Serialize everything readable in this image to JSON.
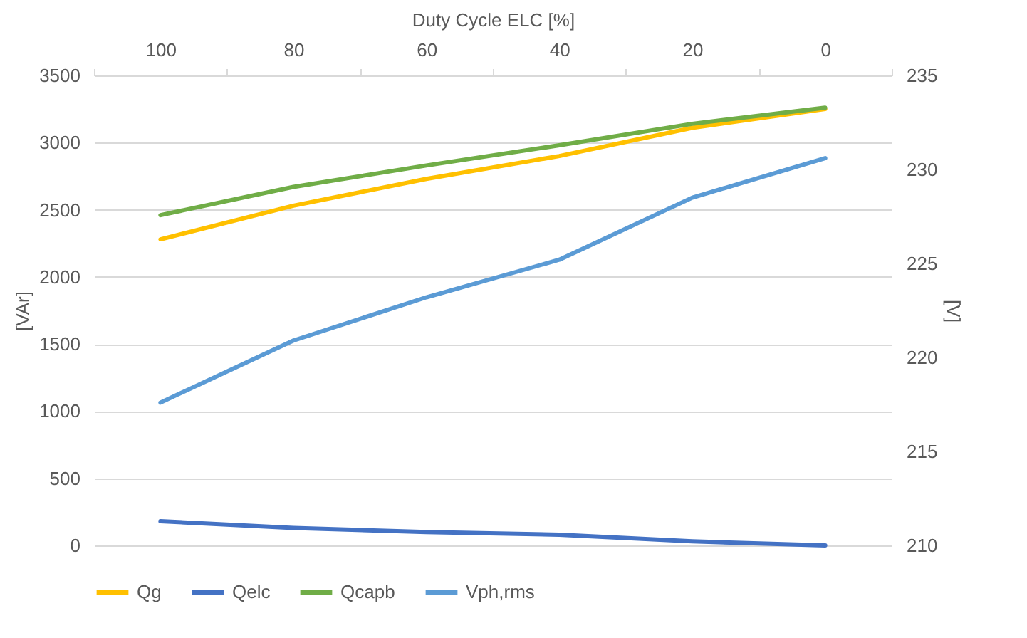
{
  "chart_data": {
    "type": "line",
    "xlabel": "Duty Cycle ELC [%]",
    "ylabel": "[VAr]",
    "y2label": "[V]",
    "categories": [
      "100",
      "80",
      "60",
      "40",
      "20",
      "0"
    ],
    "series": [
      {
        "name": "Qg",
        "color": "#ffc000",
        "values": [
          2280,
          2530,
          2730,
          2900,
          3110,
          3250
        ]
      },
      {
        "name": "Qelc",
        "color": "#4472c4",
        "values": [
          180,
          130,
          100,
          80,
          30,
          0
        ]
      },
      {
        "name": "Qcapb",
        "color": "#70ad47",
        "values": [
          2460,
          2670,
          2830,
          2980,
          3140,
          3260
        ]
      },
      {
        "name": "Vph,rms",
        "color": "#5b9bd5",
        "axis": "y2",
        "values": [
          217.6,
          220.9,
          223.2,
          225.2,
          228.5,
          230.6
        ]
      }
    ],
    "ylim": [
      0,
      3500
    ],
    "yticks": [
      0,
      500,
      1000,
      1500,
      2000,
      2500,
      3000,
      3500
    ],
    "y2lim": [
      210,
      235
    ],
    "y2ticks": [
      210,
      215,
      220,
      225,
      230,
      235
    ],
    "grid": "y",
    "legend": "bottom",
    "marker": "none",
    "line_style": "solid"
  }
}
